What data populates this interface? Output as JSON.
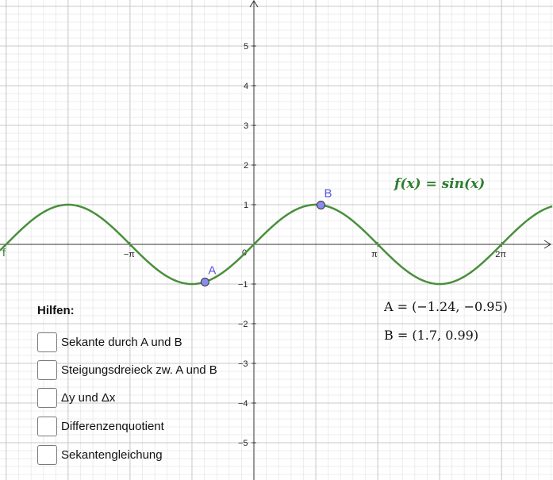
{
  "function": {
    "label": "f(x) = sin(x)",
    "curve_label": "f",
    "color": "#4a8f3c"
  },
  "axes": {
    "y_ticks": [
      "5",
      "4",
      "3",
      "2",
      "1",
      "−1",
      "−2",
      "−3",
      "−4",
      "−5"
    ],
    "x_ticks": [
      "−π",
      "π",
      "2π"
    ],
    "origin_label": "0"
  },
  "points": [
    {
      "name": "A",
      "x": -1.24,
      "y": -0.95,
      "coords_text": "A = (−1.24, −0.95)"
    },
    {
      "name": "B",
      "x": 1.7,
      "y": 0.99,
      "coords_text": "B = (1.7, 0.99)"
    }
  ],
  "point_color": "#8c8cf0",
  "help": {
    "title": "Hilfen:",
    "items": [
      {
        "label": "Sekante durch A und B",
        "checked": false
      },
      {
        "label": "Steigungsdreieck zw. A und B",
        "checked": false
      },
      {
        "label": "Δy und Δx",
        "checked": false
      },
      {
        "label": "Differenzenquotient",
        "checked": false
      },
      {
        "label": "Sekantengleichung",
        "checked": false
      }
    ]
  }
}
